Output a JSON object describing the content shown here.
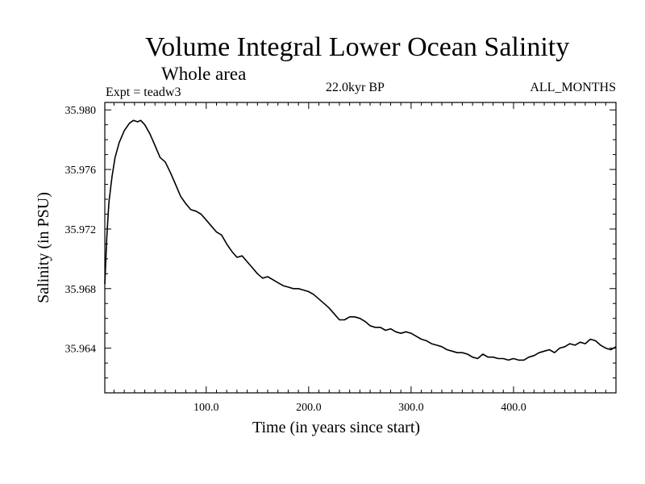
{
  "header": {
    "title": "Volume Integral Lower Ocean Salinity",
    "subtitle": "Whole area",
    "experiment": "Expt = teadw3",
    "period": "22.0kyr BP",
    "months": "ALL_MONTHS"
  },
  "colors": {
    "line": "#000000",
    "background": "#ffffff"
  },
  "chart_data": {
    "type": "line",
    "title": "Volume Integral Lower Ocean Salinity",
    "subtitle": "Whole area",
    "xlabel": "Time (in years since start)",
    "ylabel": "Salinity (in PSU)",
    "xlim": [
      1,
      500
    ],
    "ylim": [
      35.961,
      35.9805
    ],
    "x_ticks": [
      100,
      200,
      300,
      400
    ],
    "x_tick_labels": [
      "100.0",
      "200.0",
      "300.0",
      "400.0"
    ],
    "y_ticks": [
      35.964,
      35.968,
      35.972,
      35.976,
      35.98
    ],
    "y_tick_labels": [
      "35.964",
      "35.968",
      "35.972",
      "35.976",
      "35.980"
    ],
    "grid": false,
    "series": [
      {
        "name": "Salinity",
        "x": [
          1,
          3,
          5,
          8,
          11,
          15,
          20,
          25,
          29,
          33,
          36,
          40,
          45,
          50,
          55,
          60,
          65,
          70,
          75,
          80,
          85,
          90,
          95,
          100,
          105,
          110,
          115,
          120,
          125,
          130,
          135,
          140,
          145,
          150,
          155,
          160,
          165,
          170,
          175,
          180,
          185,
          190,
          195,
          200,
          205,
          210,
          215,
          220,
          225,
          230,
          235,
          240,
          245,
          250,
          255,
          260,
          265,
          270,
          275,
          280,
          285,
          290,
          295,
          300,
          305,
          310,
          315,
          320,
          325,
          330,
          335,
          340,
          345,
          350,
          355,
          360,
          365,
          370,
          375,
          380,
          385,
          390,
          395,
          400,
          405,
          410,
          415,
          420,
          425,
          430,
          435,
          440,
          445,
          450,
          455,
          460,
          465,
          470,
          475,
          480,
          485,
          490,
          495,
          500
        ],
        "y": [
          35.9683,
          35.9715,
          35.9738,
          35.9755,
          35.9768,
          35.9778,
          35.9786,
          35.9791,
          35.9793,
          35.9792,
          35.9793,
          35.979,
          35.9784,
          35.9776,
          35.9768,
          35.9765,
          35.9758,
          35.975,
          35.9742,
          35.9737,
          35.9733,
          35.9732,
          35.973,
          35.9726,
          35.9722,
          35.9718,
          35.9716,
          35.971,
          35.9705,
          35.9701,
          35.9702,
          35.9698,
          35.9694,
          35.969,
          35.9687,
          35.9688,
          35.9686,
          35.9684,
          35.9682,
          35.9681,
          35.968,
          35.968,
          35.9679,
          35.9678,
          35.9676,
          35.9673,
          35.967,
          35.9667,
          35.9663,
          35.9659,
          35.9659,
          35.9661,
          35.9661,
          35.966,
          35.9658,
          35.9655,
          35.9654,
          35.9654,
          35.9652,
          35.9653,
          35.9651,
          35.965,
          35.9651,
          35.965,
          35.9648,
          35.9646,
          35.9645,
          35.9643,
          35.9642,
          35.9641,
          35.9639,
          35.9638,
          35.9637,
          35.9637,
          35.9636,
          35.9634,
          35.9633,
          35.9636,
          35.9634,
          35.9634,
          35.9633,
          35.9633,
          35.9632,
          35.9633,
          35.9632,
          35.9632,
          35.9634,
          35.9635,
          35.9637,
          35.9638,
          35.9639,
          35.9637,
          35.964,
          35.9641,
          35.9643,
          35.9642,
          35.9644,
          35.9643,
          35.9646,
          35.9645,
          35.9642,
          35.964,
          35.9639,
          35.9641
        ]
      }
    ]
  }
}
